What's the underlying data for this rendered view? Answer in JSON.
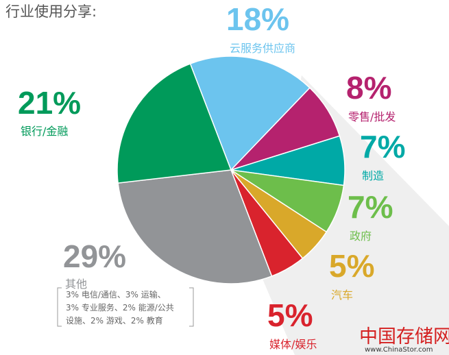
{
  "chart_data": {
    "type": "pie",
    "title": "行业使用分享:",
    "categories": [
      "云服务供应商",
      "零售/批发",
      "制造",
      "政府",
      "汽车",
      "媒体/娱乐",
      "其他",
      "银行/金融"
    ],
    "values": [
      18,
      8,
      7,
      7,
      5,
      5,
      29,
      21
    ],
    "value_labels": [
      "18%",
      "8%",
      "7%",
      "7%",
      "5%",
      "5%",
      "29%",
      "21%"
    ],
    "colors": [
      "#6cc4ee",
      "#b5226e",
      "#00a9a6",
      "#6dbe4b",
      "#d9a82a",
      "#d9232d",
      "#929497",
      "#009a5a"
    ],
    "annotation": [
      "3% 电信/通信、3% 运输、",
      "3% 专业服务、2% 能源/公共",
      "设施、2% 游戏、2% 教育"
    ],
    "watermark": {
      "name": "中国存储网",
      "url": "www.ChinaStor.com"
    }
  }
}
